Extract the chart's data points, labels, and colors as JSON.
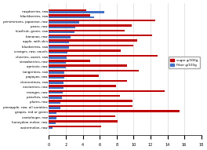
{
  "categories": [
    "raspberries, raw",
    "blackberries, raw",
    "persimmons, japanese, raw",
    "pears, raw",
    "kiwifruit, green, raw",
    "bananas, raw",
    "apple, with skin",
    "blueberries, raw",
    "oranges, raw, navels",
    "cherries, sweet, raw",
    "strawberries, raw",
    "apricots, raw",
    "tangerines, raw",
    "papayas, raw",
    "clementines, raw",
    "nectarines, raw",
    "mangos, raw",
    "peaches, raw",
    "plums, raw",
    "pineapple, raw, all varieties",
    "grapes, red or green",
    "cantaloupe, raw",
    "honeydew melon, raw",
    "watermelon, raw"
  ],
  "sugar_g100g": [
    4.42,
    4.88,
    12.53,
    9.75,
    8.99,
    12.23,
    10.39,
    9.96,
    8.5,
    12.82,
    4.89,
    9.24,
    10.58,
    5.9,
    9.2,
    7.89,
    13.66,
    8.39,
    9.92,
    9.85,
    15.48,
    7.86,
    8.12,
    6.2
  ],
  "fiber_g100g": [
    6.5,
    5.3,
    3.6,
    3.1,
    3.0,
    2.6,
    2.4,
    2.4,
    2.2,
    2.1,
    2.0,
    2.0,
    1.8,
    1.8,
    1.7,
    1.7,
    1.6,
    1.5,
    1.4,
    1.4,
    0.9,
    0.9,
    0.8,
    0.4
  ],
  "sugar_color": "#c00000",
  "fiber_color": "#4472c4",
  "legend_sugar": "sugar g/100g",
  "legend_fiber": "Fiber g/100g",
  "xlim": [
    0,
    18
  ],
  "xticks": [
    0,
    2,
    4,
    6,
    8,
    10,
    12,
    14,
    16,
    18
  ]
}
